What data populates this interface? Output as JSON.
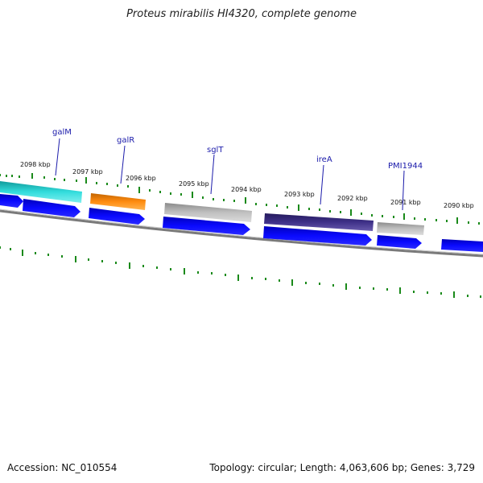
{
  "title": "Proteus mirabilis HI4320, complete genome",
  "accession_label": "Accession: NC_010554",
  "topology_label": "Topology: circular; Length: 4,063,606 bp; Genes: 3,729",
  "scale_unit": "kbp",
  "tick_labels": [
    "2098 kbp",
    "2097 kbp",
    "2096 kbp",
    "2095 kbp",
    "2094 kbp",
    "2093 kbp",
    "2092 kbp",
    "2091 kbp",
    "2090 kbp"
  ],
  "gene_labels": [
    "galM",
    "galR",
    "sglT",
    "ireA",
    "PMI1944"
  ],
  "colors": {
    "galM": "#20c8c8",
    "galR": "#ff8800",
    "sglT": "#b4b4b4",
    "ireA": "#3a2d80",
    "PMI1944": "#b4b4b4",
    "cds": "#0000ee",
    "ticks": "#1a8a1a",
    "backbone": "#7a7a7a",
    "label": "#1a1aaa"
  }
}
